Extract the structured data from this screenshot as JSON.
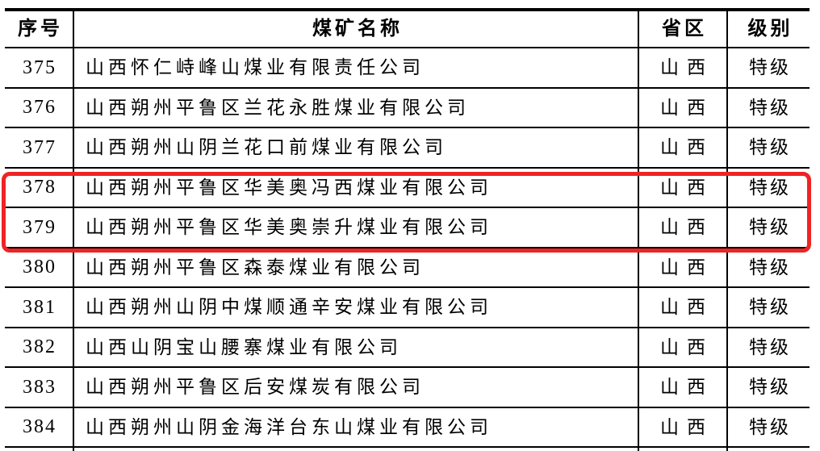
{
  "table": {
    "headers": {
      "index": "序号",
      "name": "煤矿名称",
      "province": "省区",
      "level": "级别"
    },
    "rows": [
      {
        "index": "375",
        "name": "山西怀仁峙峰山煤业有限责任公司",
        "province": "山西",
        "level": "特级",
        "highlighted": false
      },
      {
        "index": "376",
        "name": "山西朔州平鲁区兰花永胜煤业有限公司",
        "province": "山西",
        "level": "特级",
        "highlighted": false
      },
      {
        "index": "377",
        "name": "山西朔州山阴兰花口前煤业有限公司",
        "province": "山西",
        "level": "特级",
        "highlighted": false
      },
      {
        "index": "378",
        "name": "山西朔州平鲁区华美奥冯西煤业有限公司",
        "province": "山西",
        "level": "特级",
        "highlighted": true
      },
      {
        "index": "379",
        "name": "山西朔州平鲁区华美奥崇升煤业有限公司",
        "province": "山西",
        "level": "特级",
        "highlighted": true
      },
      {
        "index": "380",
        "name": "山西朔州平鲁区森泰煤业有限公司",
        "province": "山西",
        "level": "特级",
        "highlighted": false
      },
      {
        "index": "381",
        "name": "山西朔州山阴中煤顺通辛安煤业有限公司",
        "province": "山西",
        "level": "特级",
        "highlighted": false
      },
      {
        "index": "382",
        "name": "山西山阴宝山腰寨煤业有限公司",
        "province": "山西",
        "level": "特级",
        "highlighted": false
      },
      {
        "index": "383",
        "name": "山西朔州平鲁区后安煤炭有限公司",
        "province": "山西",
        "level": "特级",
        "highlighted": false
      },
      {
        "index": "384",
        "name": "山西朔州山阴金海洋台东山煤业有限公司",
        "province": "山西",
        "level": "特级",
        "highlighted": false
      }
    ]
  },
  "highlight": {
    "row_indices": [
      "378",
      "379"
    ],
    "color": "#ee2424",
    "shape": "rounded-rectangle"
  },
  "colors": {
    "border": "#000000",
    "text": "#000000",
    "background": "#ffffff"
  }
}
